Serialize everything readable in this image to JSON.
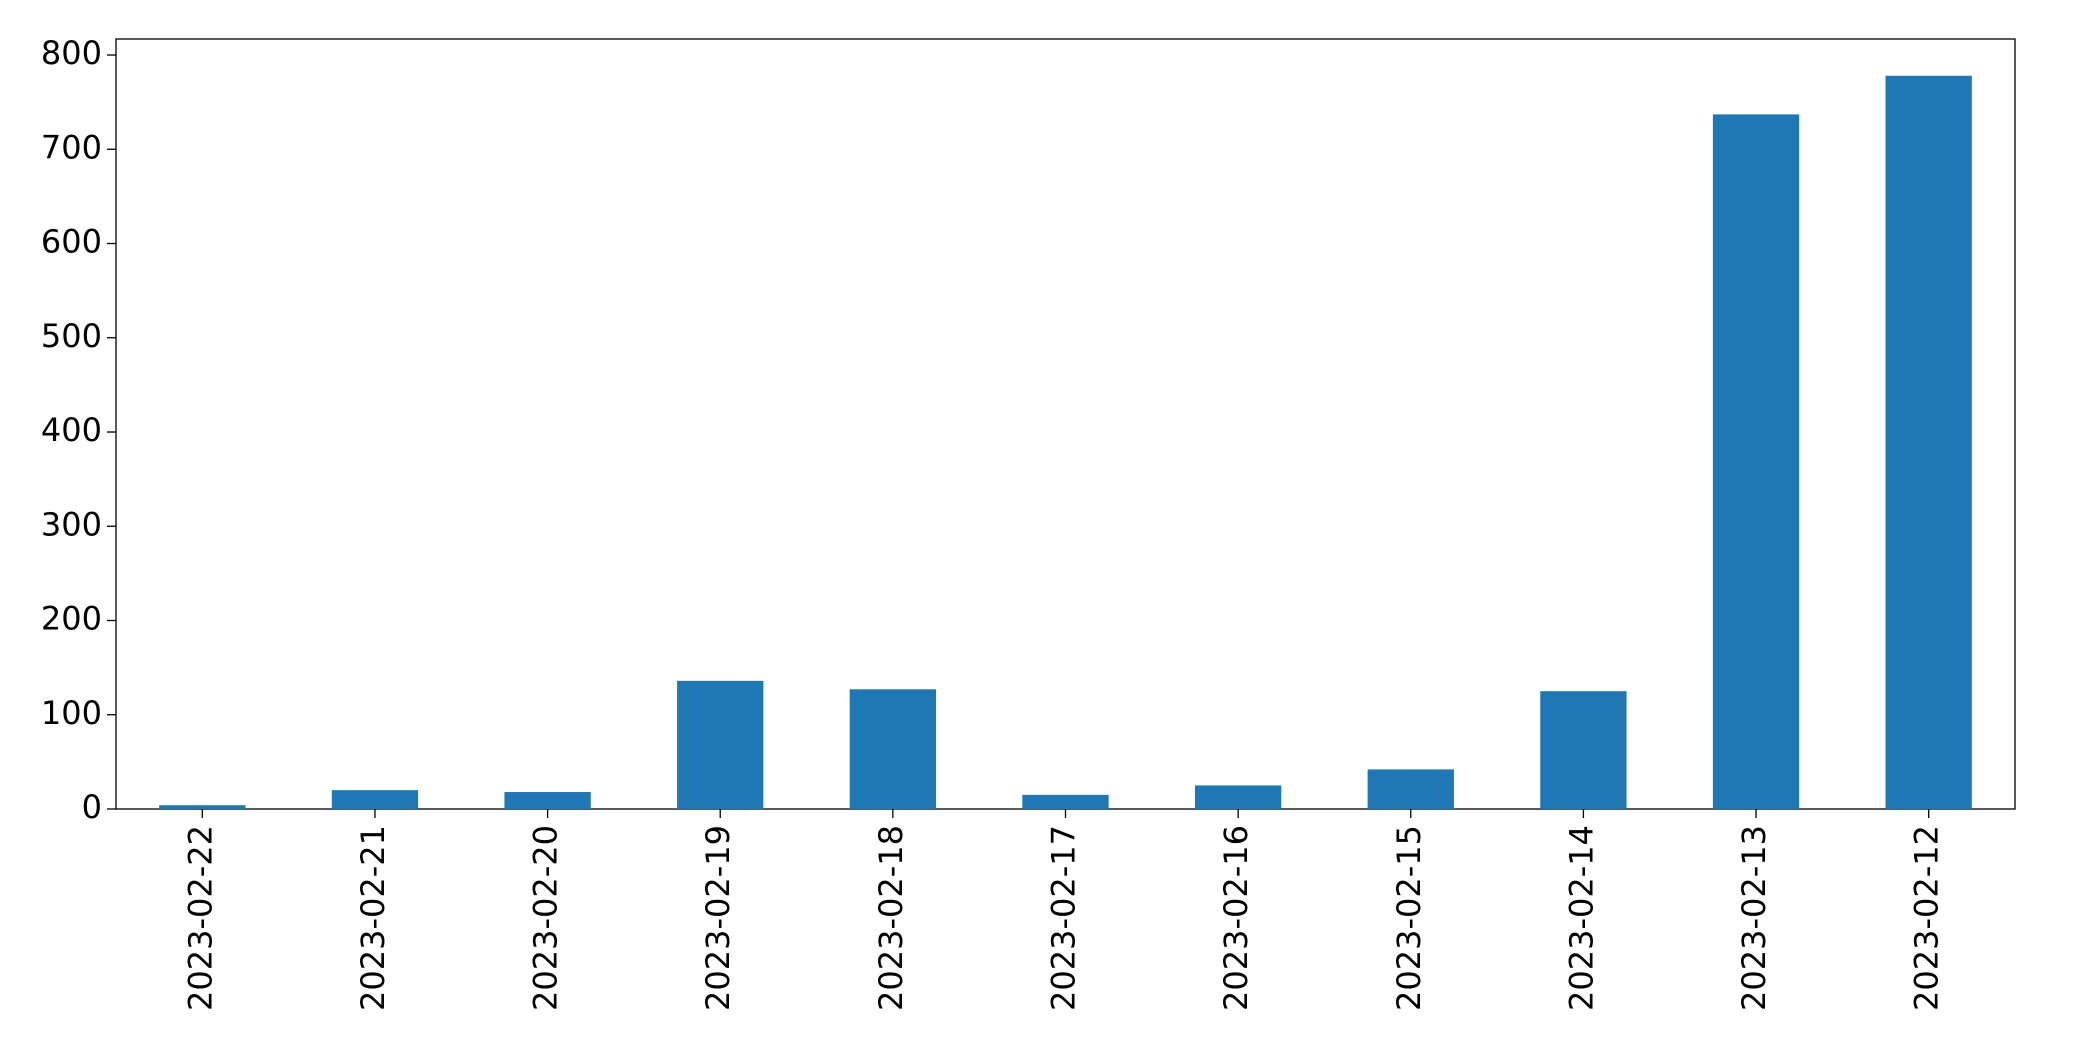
{
  "chart_data": {
    "type": "bar",
    "categories": [
      "2023-02-22",
      "2023-02-21",
      "2023-02-20",
      "2023-02-19",
      "2023-02-18",
      "2023-02-17",
      "2023-02-16",
      "2023-02-15",
      "2023-02-14",
      "2023-02-13",
      "2023-02-12"
    ],
    "values": [
      4,
      20,
      18,
      136,
      127,
      15,
      25,
      42,
      125,
      737,
      778
    ],
    "color": "#1f77b4",
    "ylim": [
      0,
      817
    ],
    "yticks": [
      0,
      100,
      200,
      300,
      400,
      500,
      600,
      700,
      800
    ],
    "grid": false
  }
}
